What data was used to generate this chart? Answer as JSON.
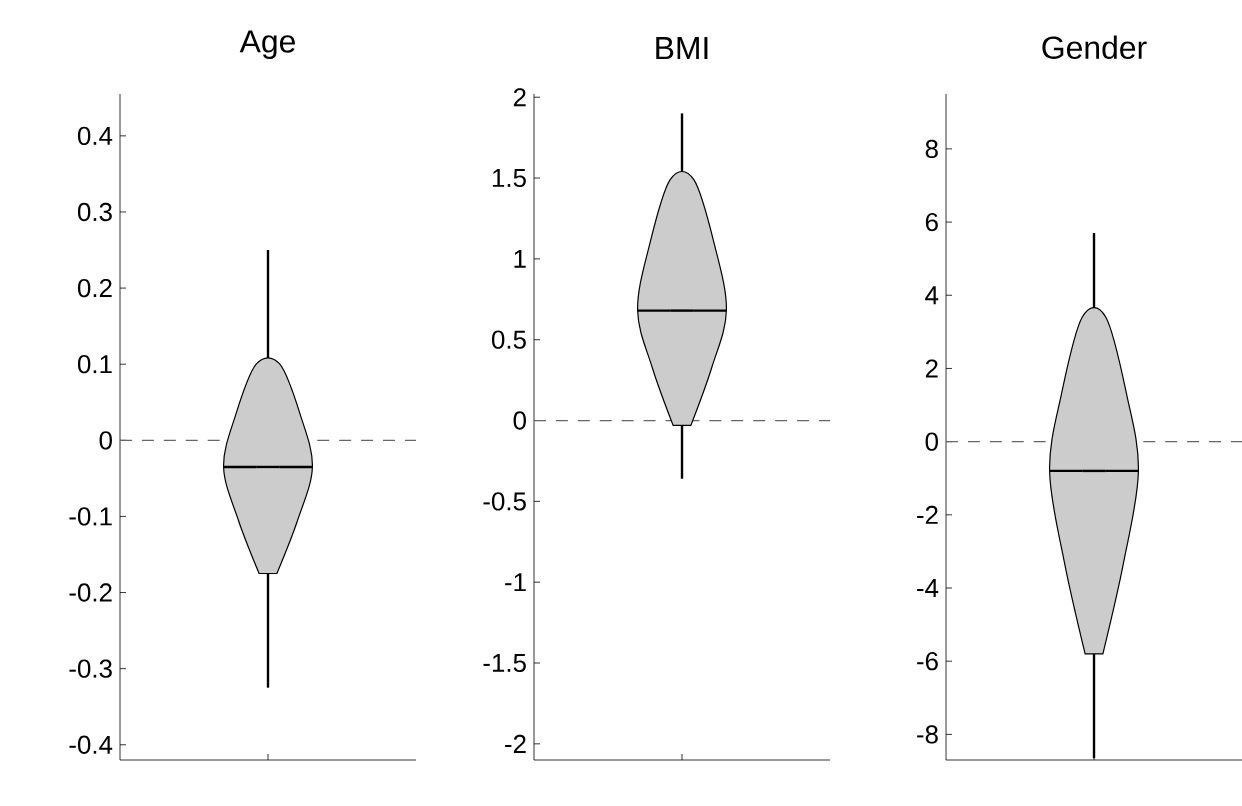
{
  "chart_data": [
    {
      "type": "box",
      "title": "Age",
      "categories": [
        null
      ],
      "boxes": [
        {
          "low": -0.325,
          "q1": -0.175,
          "median": -0.035,
          "q3": 0.1,
          "high": 0.25
        }
      ],
      "color": "#cccccc",
      "ylim": [
        -0.42,
        0.455
      ],
      "yticks": [
        -0.4,
        -0.3,
        -0.2,
        -0.1,
        0,
        0.1,
        0.2,
        0.3,
        0.4
      ],
      "ref_lines": [
        {
          "axis": "y",
          "value": 0,
          "line_style": "dashed",
          "color": "#666666"
        }
      ]
    },
    {
      "type": "box",
      "title": "BMI",
      "categories": [
        null
      ],
      "boxes": [
        {
          "low": -0.36,
          "q1": -0.03,
          "median": 0.68,
          "q3": 1.49,
          "high": 1.9
        }
      ],
      "color": "#cccccc",
      "ylim": [
        -2.1,
        2.02
      ],
      "yticks": [
        -2,
        -1.5,
        -1,
        -0.5,
        0,
        0.5,
        1,
        1.5,
        2
      ],
      "ref_lines": [
        {
          "axis": "y",
          "value": 0,
          "line_style": "dashed",
          "color": "#666666"
        }
      ]
    },
    {
      "type": "box",
      "title": "Gender",
      "categories": [
        null
      ],
      "boxes": [
        {
          "low": -8.65,
          "q1": -5.8,
          "median": -0.8,
          "q3": 3.4,
          "high": 5.7
        }
      ],
      "color": "#cccccc",
      "ylim": [
        -8.7,
        9.5
      ],
      "yticks": [
        -8,
        -6,
        -4,
        -2,
        0,
        2,
        4,
        6,
        8
      ],
      "ref_lines": [
        {
          "axis": "y",
          "value": 0,
          "line_style": "dashed",
          "color": "#666666"
        }
      ]
    }
  ]
}
